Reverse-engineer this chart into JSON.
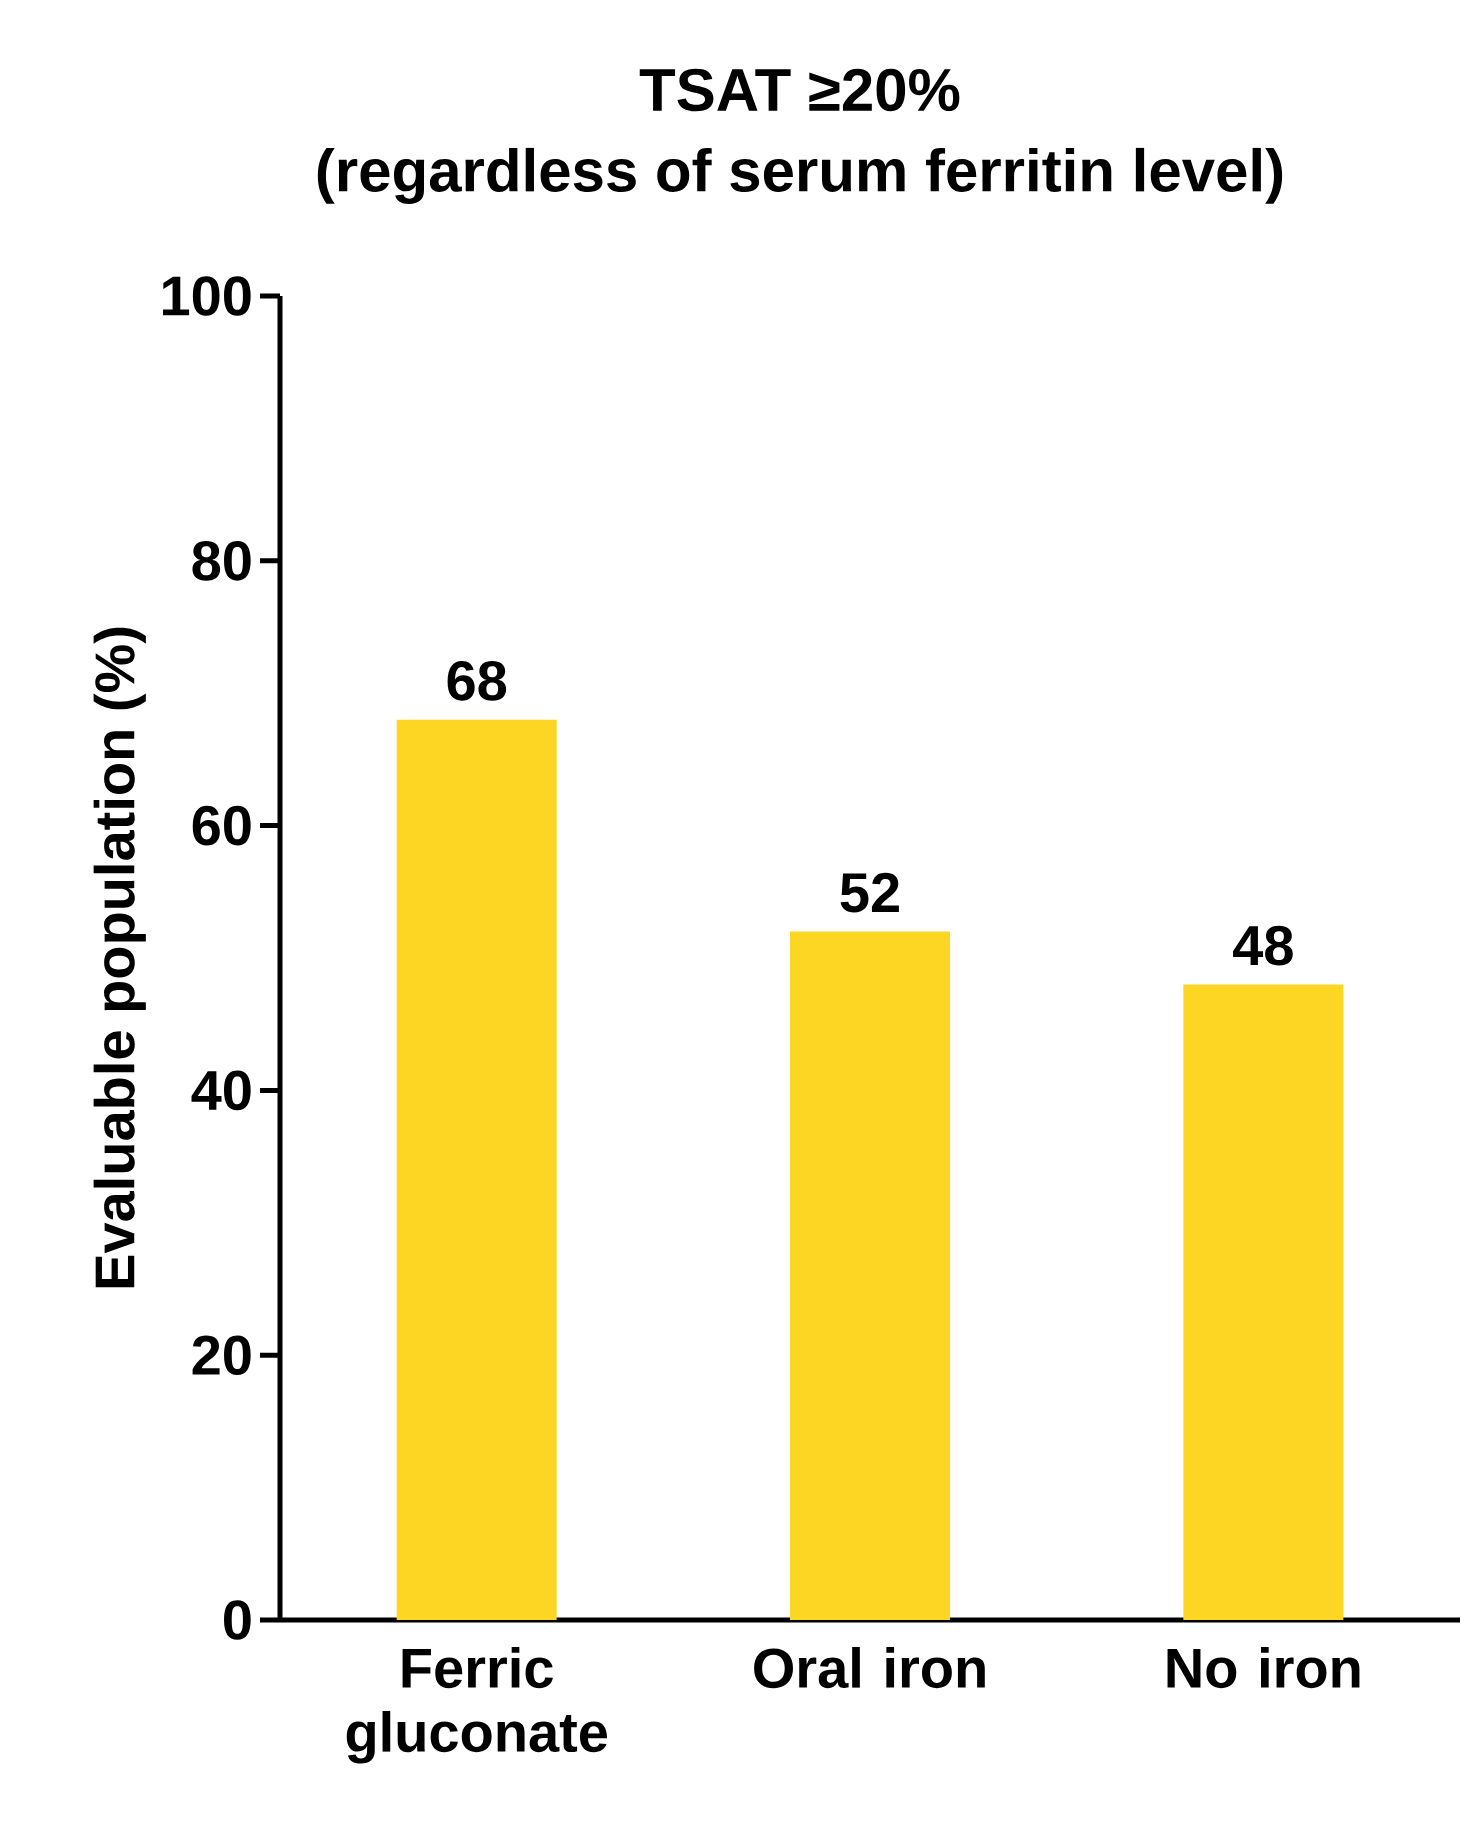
{
  "chart_data": {
    "type": "bar",
    "title": "TSAT ≥20%",
    "subtitle": "(regardless of serum ferritin level)",
    "ylabel": "Evaluable population (%)",
    "categories": [
      "Ferric gluconate",
      "Oral iron",
      "No iron"
    ],
    "values": [
      68,
      52,
      48
    ],
    "value_labels": [
      "68",
      "52",
      "48"
    ],
    "color": "#fdd523",
    "ylim": [
      0,
      100
    ],
    "yticks": [
      0,
      20,
      40,
      60,
      80,
      100
    ],
    "grid": false
  }
}
